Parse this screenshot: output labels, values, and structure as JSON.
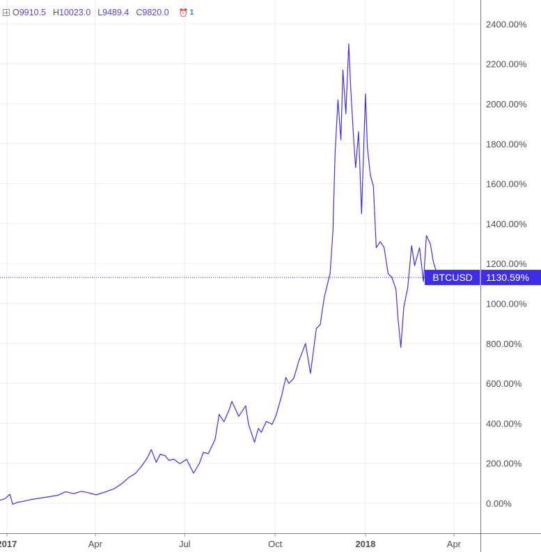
{
  "header": {
    "open_label": "O",
    "open_value": "9910.5",
    "high_label": "H",
    "high_value": "10023.0",
    "low_label": "L",
    "low_value": "9489.4",
    "close_label": "C",
    "close_value": "9820.0",
    "alerts_icon": "alarm-clock-icon",
    "alerts_count": "1"
  },
  "price_label": {
    "symbol": "BTCUSD",
    "value": "1130.59%",
    "color": "#3d2de3"
  },
  "colors": {
    "line": "#3d2de3",
    "grid": "#ebebeb"
  },
  "chart_data": {
    "type": "line",
    "title": "",
    "xlabel": "",
    "ylabel": "",
    "y_unit": "%",
    "ylim": [
      -150,
      2520
    ],
    "xlim": [
      "2016-12-25",
      "2018-04-28"
    ],
    "grid": true,
    "yticks": [
      0,
      200,
      400,
      600,
      800,
      1000,
      1200,
      1400,
      1600,
      1800,
      2000,
      2200,
      2400
    ],
    "ytick_labels": [
      "0.00%",
      "200.00%",
      "400.00%",
      "600.00%",
      "800.00%",
      "1000.00%",
      "1200.00%",
      "1400.00%",
      "1600.00%",
      "1800.00%",
      "2000.00%",
      "2200.00%",
      "2400.00%"
    ],
    "xticks": [
      "2017-01-01",
      "2017-04-01",
      "2017-07-01",
      "2017-10-01",
      "2018-01-01",
      "2018-04-01"
    ],
    "xtick_labels": [
      "2017",
      "Apr",
      "Jul",
      "Oct",
      "2018",
      "Apr"
    ],
    "xtick_bold": [
      true,
      false,
      false,
      false,
      true,
      false
    ],
    "last_value": 1130.59,
    "series": [
      {
        "name": "BTCUSD",
        "x": [
          "2016-12-25",
          "2016-12-30",
          "2017-01-04",
          "2017-01-07",
          "2017-01-12",
          "2017-01-18",
          "2017-01-25",
          "2017-02-03",
          "2017-02-12",
          "2017-02-22",
          "2017-03-02",
          "2017-03-10",
          "2017-03-18",
          "2017-03-25",
          "2017-04-02",
          "2017-04-10",
          "2017-04-20",
          "2017-04-28",
          "2017-05-05",
          "2017-05-12",
          "2017-05-18",
          "2017-05-24",
          "2017-05-28",
          "2017-06-02",
          "2017-06-06",
          "2017-06-11",
          "2017-06-15",
          "2017-06-20",
          "2017-06-26",
          "2017-07-03",
          "2017-07-10",
          "2017-07-16",
          "2017-07-20",
          "2017-07-25",
          "2017-08-01",
          "2017-08-05",
          "2017-08-10",
          "2017-08-15",
          "2017-08-18",
          "2017-08-25",
          "2017-09-01",
          "2017-09-04",
          "2017-09-10",
          "2017-09-14",
          "2017-09-17",
          "2017-09-22",
          "2017-09-28",
          "2017-10-02",
          "2017-10-08",
          "2017-10-12",
          "2017-10-15",
          "2017-10-20",
          "2017-10-25",
          "2017-11-01",
          "2017-11-06",
          "2017-11-12",
          "2017-11-16",
          "2017-11-20",
          "2017-11-26",
          "2017-11-29",
          "2017-12-01",
          "2017-12-04",
          "2017-12-07",
          "2017-12-09",
          "2017-12-12",
          "2017-12-15",
          "2017-12-17",
          "2017-12-20",
          "2017-12-22",
          "2017-12-25",
          "2017-12-28",
          "2018-01-01",
          "2018-01-03",
          "2018-01-06",
          "2018-01-09",
          "2018-01-12",
          "2018-01-16",
          "2018-01-20",
          "2018-01-24",
          "2018-01-28",
          "2018-02-01",
          "2018-02-03",
          "2018-02-06",
          "2018-02-09",
          "2018-02-13",
          "2018-02-17",
          "2018-02-20",
          "2018-02-25",
          "2018-03-01",
          "2018-03-04",
          "2018-03-08",
          "2018-03-11",
          "2018-03-16"
        ],
        "y": [
          15,
          22,
          45,
          -5,
          5,
          10,
          18,
          25,
          32,
          40,
          58,
          48,
          60,
          52,
          42,
          55,
          72,
          98,
          128,
          150,
          185,
          228,
          268,
          205,
          245,
          238,
          215,
          220,
          198,
          220,
          150,
          200,
          255,
          248,
          320,
          445,
          408,
          465,
          510,
          435,
          488,
          395,
          305,
          375,
          355,
          410,
          395,
          440,
          545,
          630,
          600,
          625,
          710,
          800,
          650,
          875,
          895,
          1030,
          1150,
          1370,
          1750,
          2020,
          1820,
          2170,
          1950,
          2300,
          2080,
          1820,
          1680,
          1860,
          1450,
          2050,
          1780,
          1640,
          1590,
          1280,
          1310,
          1280,
          1150,
          1130,
          1070,
          930,
          780,
          980,
          1080,
          1290,
          1190,
          1280,
          1110,
          1340,
          1300,
          1210,
          1130
        ]
      }
    ]
  }
}
